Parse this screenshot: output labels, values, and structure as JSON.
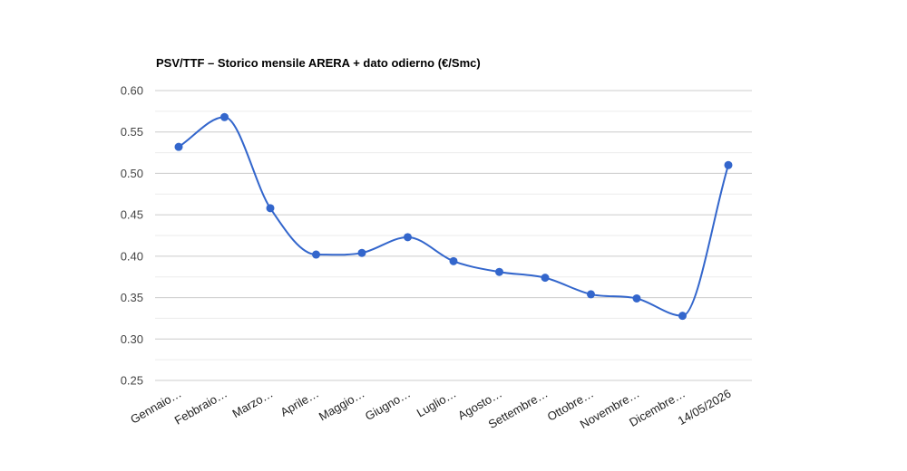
{
  "chart_data": {
    "type": "line",
    "title": "PSV/TTF – Storico mensile ARERA + dato odierno (€/Smc)",
    "xlabel": "",
    "ylabel": "",
    "categories": [
      "Gennaio…",
      "Febbraio…",
      "Marzo…",
      "Aprile…",
      "Maggio…",
      "Giugno…",
      "Luglio…",
      "Agosto…",
      "Settembre…",
      "Ottobre…",
      "Novembre…",
      "Dicembre…",
      "14/05/2026"
    ],
    "series": [
      {
        "values": [
          0.532,
          0.568,
          0.458,
          0.402,
          0.404,
          0.423,
          0.394,
          0.381,
          0.374,
          0.354,
          0.349,
          0.328,
          0.51
        ]
      }
    ],
    "ylim": [
      0.25,
      0.6
    ],
    "yticks": [
      "0.60",
      "0.55",
      "0.50",
      "0.45",
      "0.40",
      "0.35",
      "0.30",
      "0.25"
    ],
    "grid": true,
    "smooth": true,
    "legend": "none",
    "colors": {
      "line": "#3366cc",
      "grid_major": "#cccccc",
      "grid_minor": "#ebebeb"
    }
  }
}
